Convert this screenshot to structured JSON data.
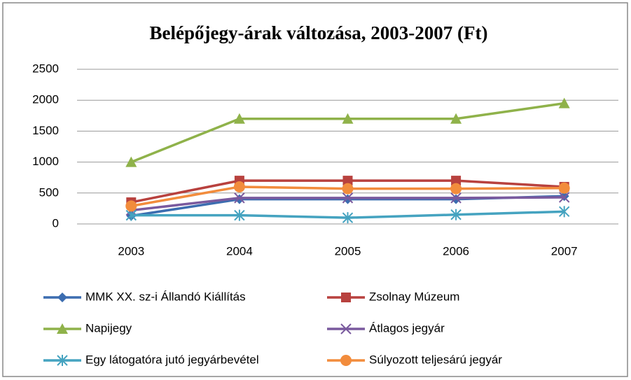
{
  "chart_data": {
    "type": "line",
    "title": "Belépőjegy-árak változása, 2003-2007 (Ft)",
    "categories": [
      "2003",
      "2004",
      "2005",
      "2006",
      "2007"
    ],
    "ylim": [
      0,
      2500
    ],
    "yticks": [
      0,
      500,
      1000,
      1500,
      2000,
      2500
    ],
    "grid": true,
    "series": [
      {
        "name": "MMK XX. sz-i Állandó Kiállítás",
        "color": "#3c6db0",
        "marker": "diamond",
        "values": [
          130,
          400,
          400,
          400,
          450
        ]
      },
      {
        "name": "Zsolnay Múzeum",
        "color": "#b8413e",
        "marker": "square",
        "values": [
          350,
          700,
          700,
          700,
          600
        ]
      },
      {
        "name": "Napijegy",
        "color": "#8fb24a",
        "marker": "triangle",
        "values": [
          1000,
          1700,
          1700,
          1700,
          1950
        ]
      },
      {
        "name": "Átlagos jegyár",
        "color": "#7a5a9e",
        "marker": "x",
        "values": [
          220,
          420,
          420,
          420,
          430
        ]
      },
      {
        "name": "Egy látogatóra jutó jegyárbevétel",
        "color": "#45a3c0",
        "marker": "star",
        "values": [
          140,
          140,
          100,
          150,
          200
        ]
      },
      {
        "name": "Súlyozott teljesárú jegyár",
        "color": "#f28c3c",
        "marker": "circle",
        "values": [
          290,
          600,
          570,
          570,
          580
        ]
      }
    ]
  }
}
